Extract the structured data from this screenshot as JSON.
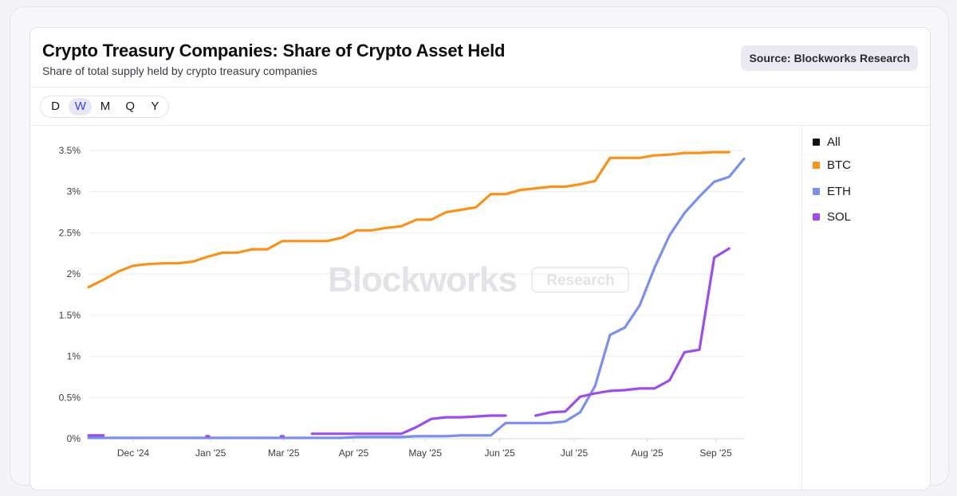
{
  "header": {
    "title": "Crypto Treasury Companies: Share of Crypto Asset Held",
    "subtitle": "Share of total supply held by crypto treasury companies",
    "source": "Source: Blockworks Research"
  },
  "timeframes": {
    "options": [
      "D",
      "W",
      "M",
      "Q",
      "Y"
    ],
    "selected": "W"
  },
  "watermark": {
    "brand": "Blockworks",
    "tag": "Research"
  },
  "legend": [
    {
      "label": "All",
      "color": "#111111"
    },
    {
      "label": "BTC",
      "color": "#f7931a"
    },
    {
      "label": "ETH",
      "color": "#7b8fec"
    },
    {
      "label": "SOL",
      "color": "#9d4eea"
    }
  ],
  "chart_data": {
    "type": "line",
    "y_ticks": [
      "0%",
      "0.5%",
      "1%",
      "1.5%",
      "2%",
      "2.5%",
      "3%",
      "3.5%"
    ],
    "ylim": [
      0,
      3.5
    ],
    "x_ticks": [
      "Dec '24",
      "Jan '25",
      "Mar '25",
      "Apr '25",
      "May '25",
      "Jun '25",
      "Jul '25",
      "Aug '25",
      "Sep '25"
    ],
    "grid": true,
    "legend_position": "right",
    "series": [
      {
        "name": "BTC",
        "color": "#f7931a",
        "points": [
          [
            0,
            1.84
          ],
          [
            1,
            1.93
          ],
          [
            2,
            2.03
          ],
          [
            3,
            2.1
          ],
          [
            4,
            2.12
          ],
          [
            5,
            2.13
          ],
          [
            6,
            2.13
          ],
          [
            7,
            2.15
          ],
          [
            8,
            2.21
          ],
          [
            9,
            2.26
          ],
          [
            10,
            2.26
          ],
          [
            11,
            2.3
          ],
          [
            12,
            2.3
          ],
          [
            13,
            2.4
          ],
          [
            14,
            2.4
          ],
          [
            15,
            2.4
          ],
          [
            16,
            2.4
          ],
          [
            17,
            2.44
          ],
          [
            18,
            2.53
          ],
          [
            19,
            2.53
          ],
          [
            20,
            2.56
          ],
          [
            21,
            2.58
          ],
          [
            22,
            2.66
          ],
          [
            23,
            2.66
          ],
          [
            24,
            2.75
          ],
          [
            25,
            2.78
          ],
          [
            26,
            2.81
          ],
          [
            27,
            2.97
          ],
          [
            28,
            2.97
          ],
          [
            29,
            3.02
          ],
          [
            30,
            3.04
          ],
          [
            31,
            3.06
          ],
          [
            32,
            3.06
          ],
          [
            33,
            3.09
          ],
          [
            34,
            3.13
          ],
          [
            35,
            3.41
          ],
          [
            36,
            3.41
          ],
          [
            37,
            3.41
          ],
          [
            38,
            3.44
          ],
          [
            39,
            3.45
          ],
          [
            40,
            3.47
          ],
          [
            41,
            3.47
          ],
          [
            42,
            3.48
          ],
          [
            43,
            3.48
          ]
        ]
      },
      {
        "name": "ETH",
        "color": "#7b8fec",
        "points": [
          [
            0,
            0.01
          ],
          [
            1,
            0.01
          ],
          [
            2,
            0.01
          ],
          [
            3,
            0.01
          ],
          [
            4,
            0.01
          ],
          [
            5,
            0.01
          ],
          [
            6,
            0.01
          ],
          [
            7,
            0.01
          ],
          [
            8,
            0.01
          ],
          [
            9,
            0.01
          ],
          [
            10,
            0.01
          ],
          [
            11,
            0.01
          ],
          [
            12,
            0.01
          ],
          [
            13,
            0.01
          ],
          [
            14,
            0.01
          ],
          [
            15,
            0.01
          ],
          [
            16,
            0.01
          ],
          [
            17,
            0.01
          ],
          [
            18,
            0.02
          ],
          [
            19,
            0.02
          ],
          [
            20,
            0.02
          ],
          [
            21,
            0.02
          ],
          [
            22,
            0.03
          ],
          [
            23,
            0.03
          ],
          [
            24,
            0.03
          ],
          [
            25,
            0.04
          ],
          [
            26,
            0.04
          ],
          [
            27,
            0.04
          ],
          [
            28,
            0.19
          ],
          [
            29,
            0.19
          ],
          [
            30,
            0.19
          ],
          [
            31,
            0.19
          ],
          [
            32,
            0.21
          ],
          [
            33,
            0.32
          ],
          [
            34,
            0.64
          ],
          [
            35,
            1.26
          ],
          [
            36,
            1.35
          ],
          [
            37,
            1.62
          ],
          [
            38,
            2.08
          ],
          [
            39,
            2.47
          ],
          [
            40,
            2.74
          ],
          [
            41,
            2.94
          ],
          [
            42,
            3.12
          ],
          [
            43,
            3.18
          ],
          [
            44,
            3.4
          ]
        ]
      },
      {
        "name": "SOL",
        "color": "#9d4eea",
        "segments": [
          [
            [
              0,
              0.04
            ],
            [
              1,
              0.04
            ]
          ],
          [
            [
              8,
              0.03
            ]
          ],
          [
            [
              13,
              0.03
            ]
          ],
          [
            [
              15,
              0.06
            ],
            [
              16,
              0.06
            ],
            [
              17,
              0.06
            ],
            [
              18,
              0.06
            ],
            [
              19,
              0.06
            ],
            [
              20,
              0.06
            ],
            [
              21,
              0.06
            ],
            [
              22,
              0.14
            ],
            [
              23,
              0.24
            ],
            [
              24,
              0.26
            ],
            [
              25,
              0.26
            ],
            [
              26,
              0.27
            ],
            [
              27,
              0.28
            ],
            [
              28,
              0.28
            ]
          ],
          [
            [
              30,
              0.28
            ],
            [
              31,
              0.32
            ],
            [
              32,
              0.33
            ],
            [
              33,
              0.51
            ],
            [
              34,
              0.55
            ],
            [
              35,
              0.58
            ],
            [
              36,
              0.59
            ],
            [
              37,
              0.61
            ],
            [
              38,
              0.61
            ],
            [
              39,
              0.71
            ],
            [
              40,
              1.05
            ],
            [
              41,
              1.08
            ],
            [
              42,
              2.2
            ],
            [
              43,
              2.31
            ]
          ]
        ]
      }
    ]
  }
}
